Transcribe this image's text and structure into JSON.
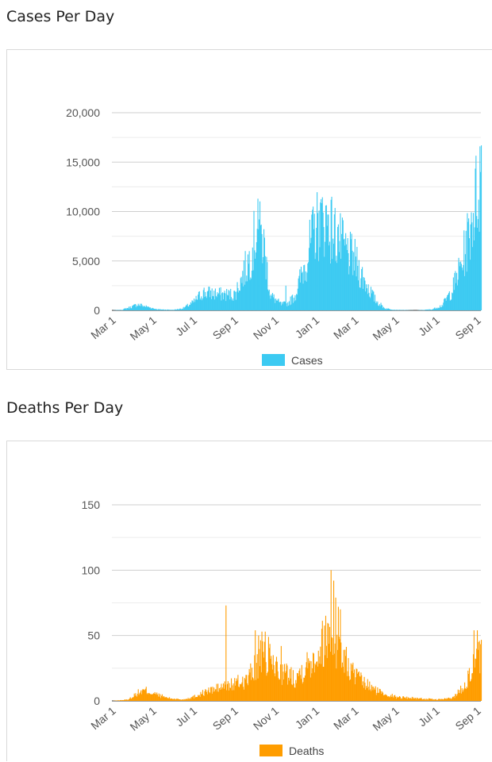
{
  "cases_title": "Cases Per Day",
  "deaths_title": "Deaths Per Day",
  "chart_data": [
    {
      "type": "bar",
      "title": "Cases Per Day",
      "legend": "Cases",
      "legend_position": "bottom",
      "color": "#3ccaf2",
      "x_start": "2020-03-01",
      "x_end": "2021-09-07",
      "x_ticks": [
        "Mar 1",
        "May 1",
        "Jul 1",
        "Sep 1",
        "Nov 1",
        "Jan 1",
        "Mar 1",
        "May 1",
        "Jul 1",
        "Sep 1"
      ],
      "x_tick_dates": [
        "2020-03-01",
        "2020-05-01",
        "2020-07-01",
        "2020-09-01",
        "2020-11-01",
        "2021-01-01",
        "2021-03-01",
        "2021-05-01",
        "2021-07-01",
        "2021-09-01"
      ],
      "ylim": [
        0,
        20000
      ],
      "y_ticks": [
        0,
        5000,
        10000,
        15000,
        20000
      ],
      "y_tick_labels": [
        "0",
        "5,000",
        "10,000",
        "15,000",
        "20,000"
      ],
      "grid": true,
      "profile": [
        [
          "2020-03-01",
          0
        ],
        [
          "2020-03-15",
          50
        ],
        [
          "2020-04-01",
          400
        ],
        [
          "2020-04-08",
          600
        ],
        [
          "2020-04-20",
          400
        ],
        [
          "2020-05-08",
          100
        ],
        [
          "2020-06-01",
          50
        ],
        [
          "2020-06-15",
          200
        ],
        [
          "2020-07-01",
          800
        ],
        [
          "2020-07-15",
          1800
        ],
        [
          "2020-08-01",
          1700
        ],
        [
          "2020-08-15",
          1600
        ],
        [
          "2020-09-01",
          1600
        ],
        [
          "2020-09-10",
          3000
        ],
        [
          "2020-09-25",
          5500
        ],
        [
          "2020-10-05",
          8500
        ],
        [
          "2020-10-15",
          6500
        ],
        [
          "2020-10-25",
          1500
        ],
        [
          "2020-11-10",
          600
        ],
        [
          "2020-11-20",
          700
        ],
        [
          "2020-12-01",
          1500
        ],
        [
          "2020-12-15",
          4500
        ],
        [
          "2021-01-01",
          8500
        ],
        [
          "2021-01-15",
          9300
        ],
        [
          "2021-02-01",
          7500
        ],
        [
          "2021-02-15",
          6000
        ],
        [
          "2021-03-01",
          5000
        ],
        [
          "2021-03-15",
          3000
        ],
        [
          "2021-04-01",
          1000
        ],
        [
          "2021-04-15",
          200
        ],
        [
          "2021-05-01",
          50
        ],
        [
          "2021-06-01",
          0
        ],
        [
          "2021-06-25",
          100
        ],
        [
          "2021-07-10",
          500
        ],
        [
          "2021-07-25",
          2000
        ],
        [
          "2021-08-10",
          5000
        ],
        [
          "2021-08-20",
          8000
        ],
        [
          "2021-09-01",
          12000
        ],
        [
          "2021-09-07",
          14000
        ]
      ],
      "spikes": [
        [
          "2020-10-06",
          11300
        ],
        [
          "2020-10-08",
          9200
        ],
        [
          "2020-10-10",
          8600
        ],
        [
          "2020-11-17",
          2500
        ],
        [
          "2021-01-06",
          10100
        ],
        [
          "2021-01-12",
          9900
        ],
        [
          "2021-01-19",
          9700
        ],
        [
          "2021-02-04",
          8700
        ],
        [
          "2021-08-22",
          8700
        ],
        [
          "2021-09-03",
          11200
        ],
        [
          "2021-09-05",
          16600
        ],
        [
          "2021-09-06",
          14000
        ]
      ]
    },
    {
      "type": "bar",
      "title": "Deaths Per Day",
      "legend": "Deaths",
      "legend_position": "bottom",
      "color": "#ff9d00",
      "x_start": "2020-03-01",
      "x_end": "2021-09-07",
      "x_ticks": [
        "Mar 1",
        "May 1",
        "Jul 1",
        "Sep 1",
        "Nov 1",
        "Jan 1",
        "Mar 1",
        "May 1",
        "Jul 1",
        "Sep 1"
      ],
      "x_tick_dates": [
        "2020-03-01",
        "2020-05-01",
        "2020-07-01",
        "2020-09-01",
        "2020-11-01",
        "2021-01-01",
        "2021-03-01",
        "2021-05-01",
        "2021-07-01",
        "2021-09-01"
      ],
      "ylim": [
        0,
        150
      ],
      "y_ticks": [
        0,
        50,
        100,
        150
      ],
      "y_tick_labels": [
        "0",
        "50",
        "100",
        "150"
      ],
      "grid": true,
      "profile": [
        [
          "2020-03-01",
          0
        ],
        [
          "2020-03-25",
          1
        ],
        [
          "2020-04-08",
          6
        ],
        [
          "2020-04-20",
          8
        ],
        [
          "2020-05-05",
          5
        ],
        [
          "2020-05-25",
          2
        ],
        [
          "2020-06-15",
          1
        ],
        [
          "2020-07-01",
          3
        ],
        [
          "2020-07-20",
          7
        ],
        [
          "2020-08-10",
          10
        ],
        [
          "2020-09-01",
          13
        ],
        [
          "2020-09-20",
          16
        ],
        [
          "2020-10-10",
          32
        ],
        [
          "2020-10-25",
          30
        ],
        [
          "2020-11-10",
          22
        ],
        [
          "2020-12-01",
          18
        ],
        [
          "2020-12-20",
          28
        ],
        [
          "2021-01-05",
          38
        ],
        [
          "2021-01-20",
          52
        ],
        [
          "2021-02-05",
          40
        ],
        [
          "2021-02-20",
          25
        ],
        [
          "2021-03-10",
          15
        ],
        [
          "2021-04-01",
          8
        ],
        [
          "2021-05-01",
          3
        ],
        [
          "2021-06-01",
          2
        ],
        [
          "2021-07-01",
          1
        ],
        [
          "2021-07-25",
          2
        ],
        [
          "2021-08-10",
          10
        ],
        [
          "2021-08-25",
          25
        ],
        [
          "2021-09-07",
          35
        ]
      ],
      "spikes": [
        [
          "2020-08-19",
          73
        ],
        [
          "2020-10-02",
          54
        ],
        [
          "2020-10-07",
          50
        ],
        [
          "2020-10-12",
          53
        ],
        [
          "2020-10-17",
          53
        ],
        [
          "2020-10-22",
          49
        ],
        [
          "2020-11-10",
          42
        ],
        [
          "2021-01-24",
          100
        ],
        [
          "2021-01-28",
          92
        ],
        [
          "2021-01-31",
          79
        ],
        [
          "2021-02-04",
          72
        ],
        [
          "2021-02-07",
          70
        ],
        [
          "2021-08-27",
          54
        ],
        [
          "2021-09-01",
          54
        ],
        [
          "2021-09-03",
          45
        ]
      ]
    }
  ]
}
